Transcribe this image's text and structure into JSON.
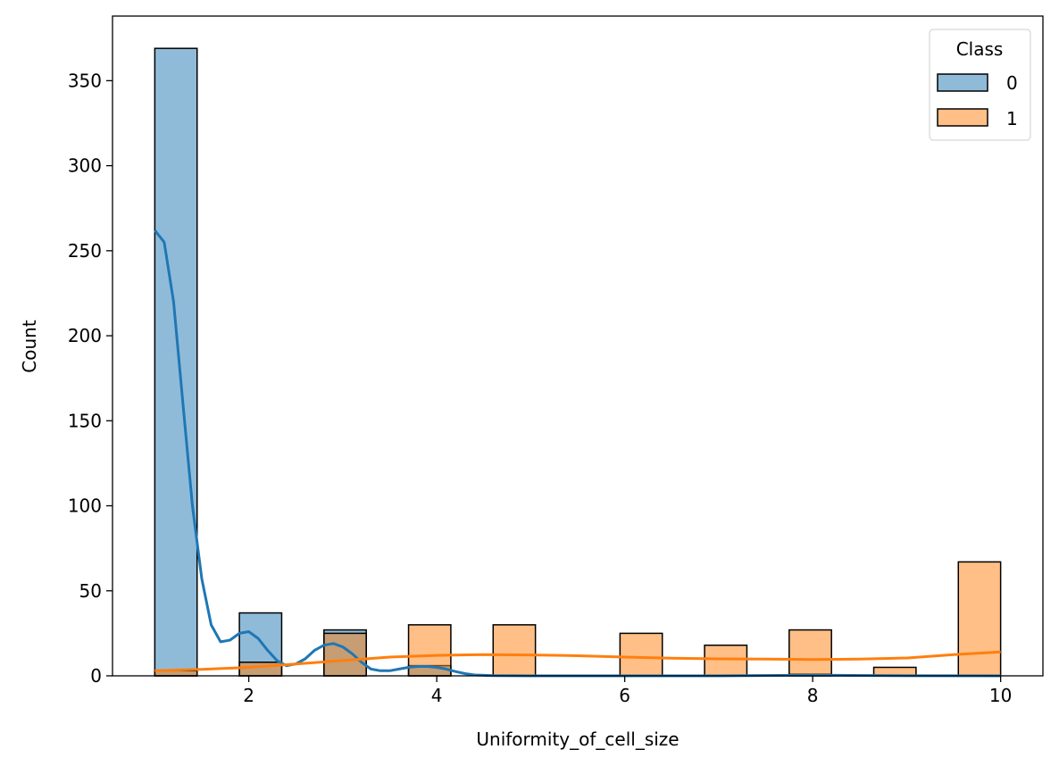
{
  "chart_data": {
    "type": "bar",
    "title": "",
    "xlabel": "Uniformity_of_cell_size",
    "ylabel": "Count",
    "xlim": [
      0.55,
      10.45
    ],
    "ylim": [
      0,
      388
    ],
    "xticks": [
      2,
      4,
      6,
      8,
      10
    ],
    "yticks": [
      0,
      50,
      100,
      150,
      200,
      250,
      300,
      350
    ],
    "bin_width": 0.45,
    "grid": false,
    "legend": {
      "title": "Class",
      "placement": "top-right"
    },
    "series": [
      {
        "name": "0",
        "color": "#1f77b4",
        "bars": [
          {
            "x0": 1.0,
            "value": 369
          },
          {
            "x0": 1.9,
            "value": 37
          },
          {
            "x0": 2.8,
            "value": 27
          },
          {
            "x0": 3.7,
            "value": 6
          },
          {
            "x0": 7.75,
            "value": 1
          }
        ],
        "kde": [
          [
            1.0,
            262
          ],
          [
            1.1,
            255
          ],
          [
            1.2,
            220
          ],
          [
            1.3,
            160
          ],
          [
            1.4,
            100
          ],
          [
            1.5,
            57
          ],
          [
            1.6,
            30
          ],
          [
            1.7,
            20
          ],
          [
            1.8,
            21
          ],
          [
            1.9,
            25
          ],
          [
            2.0,
            26
          ],
          [
            2.1,
            22
          ],
          [
            2.2,
            15
          ],
          [
            2.3,
            9
          ],
          [
            2.4,
            6
          ],
          [
            2.5,
            7
          ],
          [
            2.6,
            10
          ],
          [
            2.7,
            15
          ],
          [
            2.8,
            18
          ],
          [
            2.9,
            19
          ],
          [
            3.0,
            17
          ],
          [
            3.1,
            13
          ],
          [
            3.2,
            8
          ],
          [
            3.3,
            4
          ],
          [
            3.4,
            3
          ],
          [
            3.5,
            3
          ],
          [
            3.6,
            4
          ],
          [
            3.7,
            5
          ],
          [
            3.8,
            5.5
          ],
          [
            3.9,
            5.5
          ],
          [
            4.0,
            5
          ],
          [
            4.1,
            4
          ],
          [
            4.2,
            2.5
          ],
          [
            4.3,
            1.3
          ],
          [
            4.4,
            0.5
          ],
          [
            4.6,
            0.1
          ],
          [
            5.0,
            0
          ],
          [
            6.0,
            0
          ],
          [
            7.0,
            0
          ],
          [
            7.8,
            0.3
          ],
          [
            8.0,
            0.4
          ],
          [
            8.2,
            0.3
          ],
          [
            9.0,
            0.05
          ],
          [
            10.0,
            0
          ]
        ]
      },
      {
        "name": "1",
        "color": "#ff7f0e",
        "bars": [
          {
            "x0": 1.0,
            "value": 3
          },
          {
            "x0": 1.9,
            "value": 8
          },
          {
            "x0": 2.8,
            "value": 25
          },
          {
            "x0": 3.7,
            "value": 30
          },
          {
            "x0": 4.6,
            "value": 30
          },
          {
            "x0": 5.95,
            "value": 25
          },
          {
            "x0": 6.85,
            "value": 18
          },
          {
            "x0": 7.75,
            "value": 27
          },
          {
            "x0": 8.65,
            "value": 5
          },
          {
            "x0": 9.55,
            "value": 67
          }
        ],
        "kde": [
          [
            1.0,
            3
          ],
          [
            1.5,
            3.8
          ],
          [
            2.0,
            5
          ],
          [
            2.5,
            7
          ],
          [
            3.0,
            9
          ],
          [
            3.5,
            11
          ],
          [
            4.0,
            12
          ],
          [
            4.5,
            12.5
          ],
          [
            5.0,
            12.3
          ],
          [
            5.5,
            11.8
          ],
          [
            6.0,
            11
          ],
          [
            6.5,
            10.4
          ],
          [
            7.0,
            10
          ],
          [
            7.5,
            9.8
          ],
          [
            8.0,
            9.6
          ],
          [
            8.5,
            9.8
          ],
          [
            9.0,
            10.5
          ],
          [
            9.5,
            12.5
          ],
          [
            10.0,
            14
          ]
        ]
      }
    ]
  }
}
